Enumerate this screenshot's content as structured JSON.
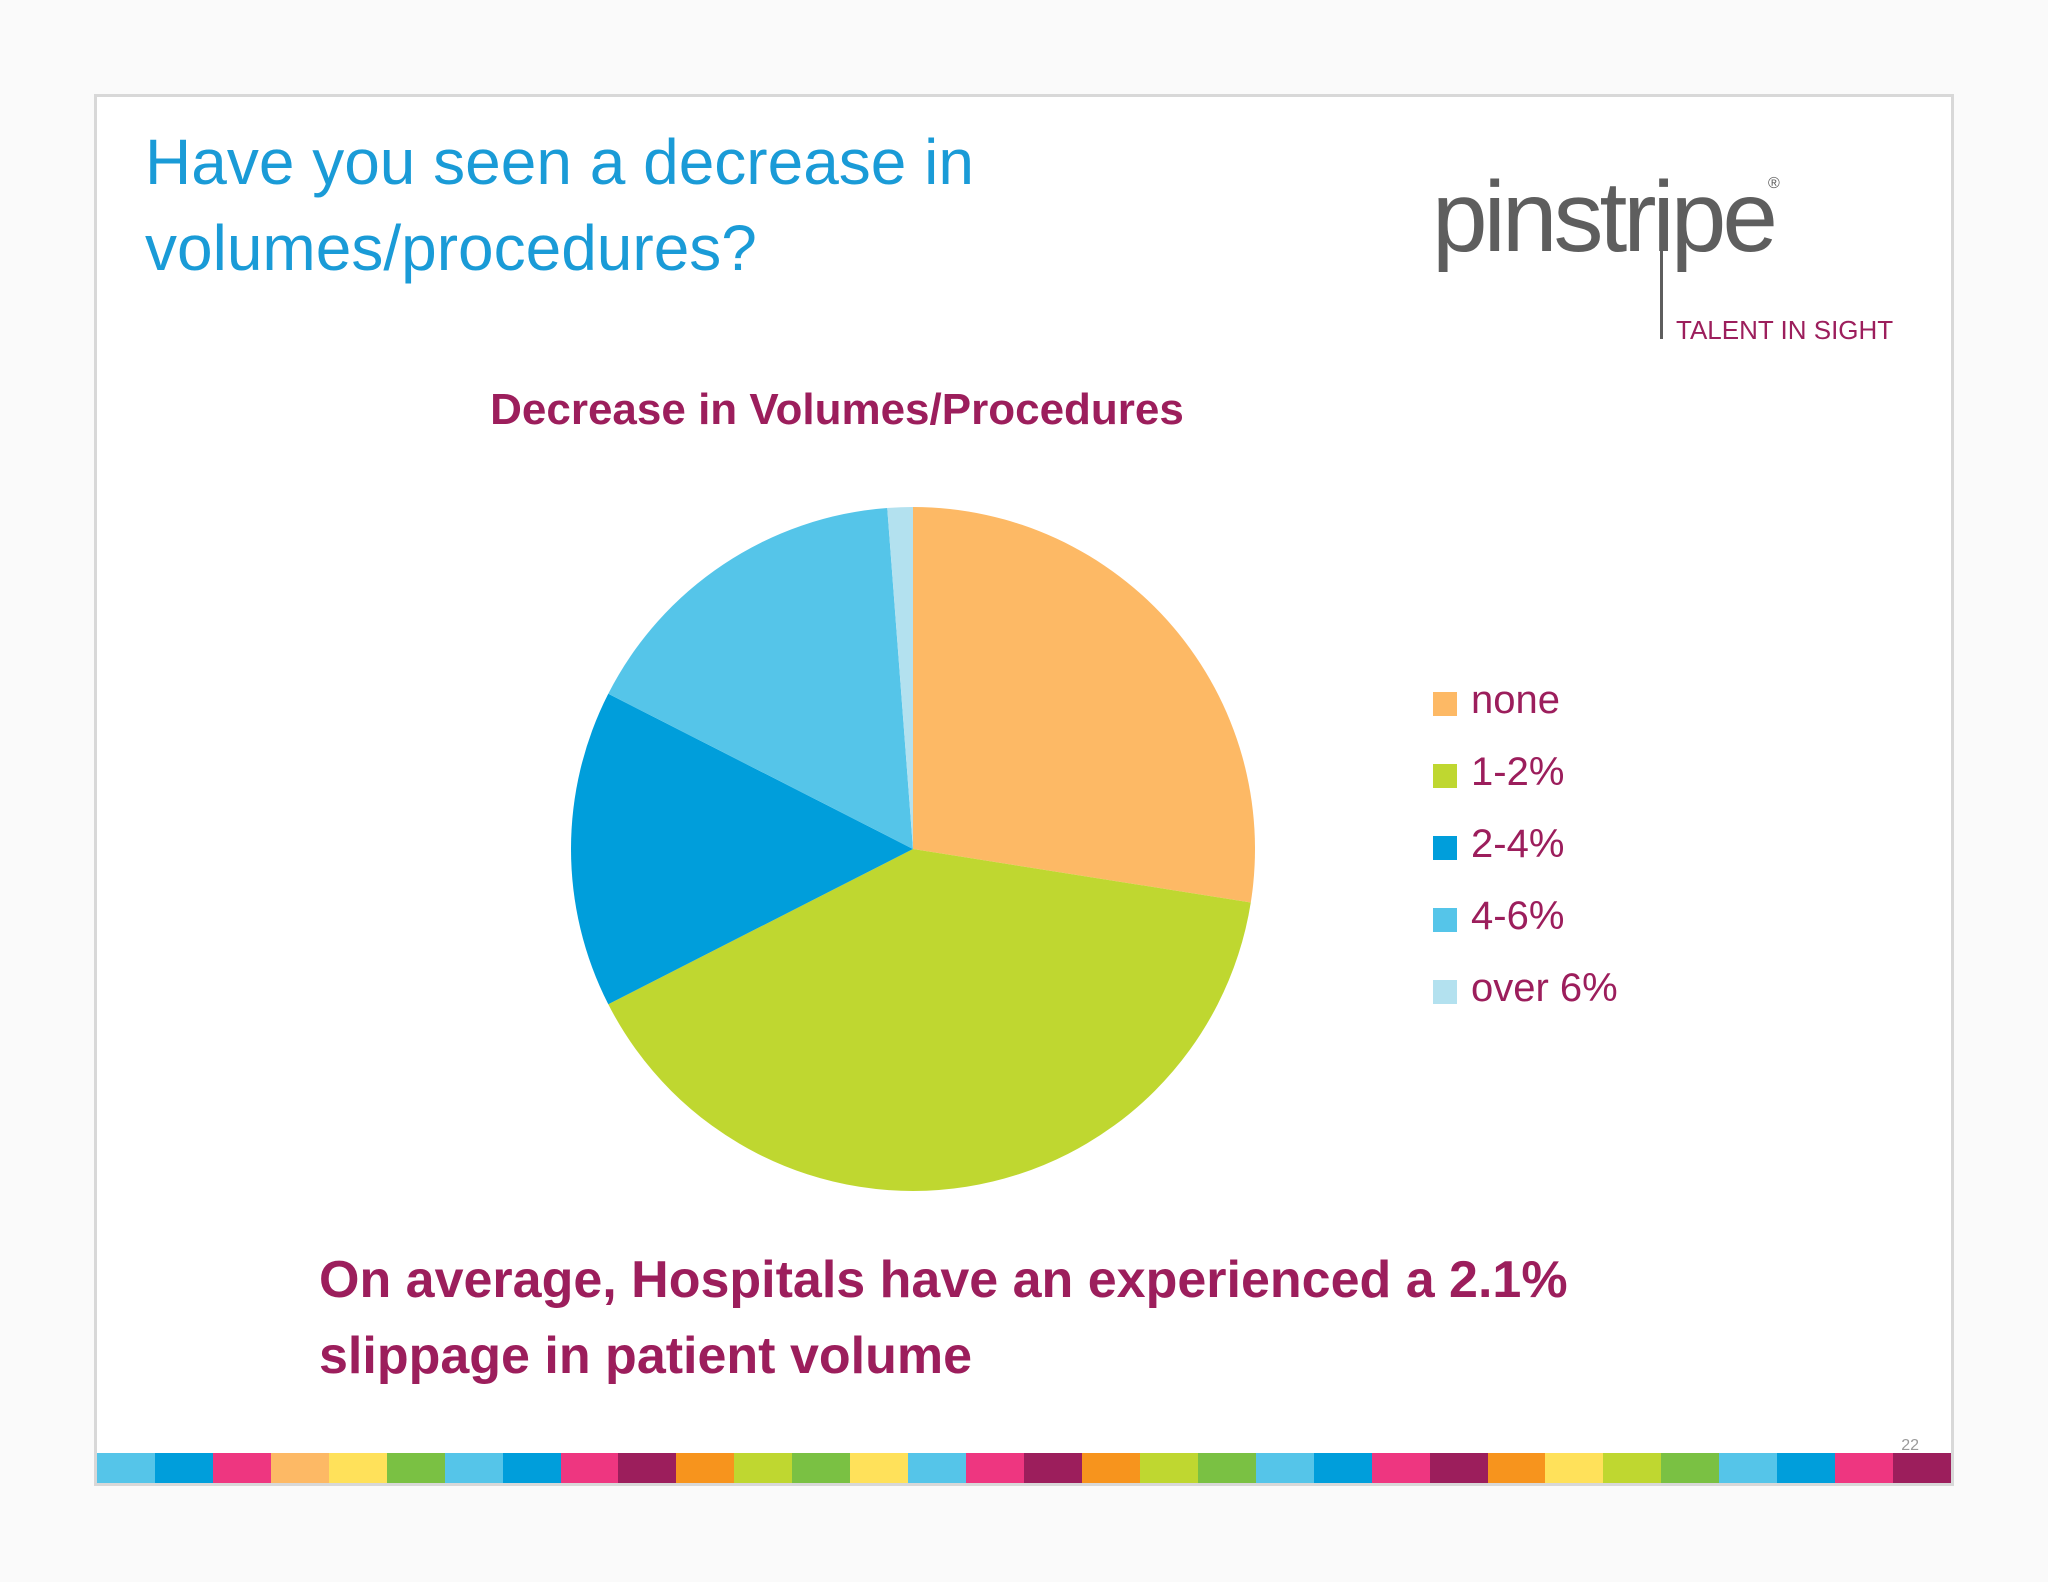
{
  "slide": {
    "title_line1": "Have you seen a decrease in",
    "title_line2": "volumes/procedures?",
    "logo": {
      "word": "pinstripe",
      "registered": "®",
      "tagline": "TALENT IN SIGHT"
    },
    "footnote_line1": "On average, Hospitals have an experienced a 2.1%",
    "footnote_line2": "slippage in patient volume",
    "page_number": "22"
  },
  "chart_data": {
    "type": "pie",
    "title": "Decrease in Volumes/Procedures",
    "legend_position": "right",
    "slices": [
      {
        "label": "none",
        "value": 27.5,
        "color": "#fdb965"
      },
      {
        "label": "1-2%",
        "value": 40.0,
        "color": "#bfd730"
      },
      {
        "label": "2-4%",
        "value": 15.0,
        "color": "#009edb"
      },
      {
        "label": "4-6%",
        "value": 16.3,
        "color": "#55c5e9"
      },
      {
        "label": "over 6%",
        "value": 1.2,
        "color": "#b3e1ef"
      }
    ]
  },
  "stripe_colors": [
    "#55c5e9",
    "#009edb",
    "#ee3680",
    "#fdb965",
    "#ffe15a",
    "#7ac143",
    "#55c5e9",
    "#009edb",
    "#ee3680",
    "#9c1e5c",
    "#f7941d",
    "#bfd730",
    "#7ac143",
    "#ffe15a",
    "#55c5e9",
    "#ee3680",
    "#9c1e5c",
    "#f7941d",
    "#bfd730",
    "#7ac143",
    "#55c5e9",
    "#009edb",
    "#ee3680",
    "#9c1e5c",
    "#f7941d",
    "#ffe15a",
    "#bfd730",
    "#7ac143",
    "#55c5e9",
    "#009edb",
    "#ee3680",
    "#9c1e5c"
  ]
}
